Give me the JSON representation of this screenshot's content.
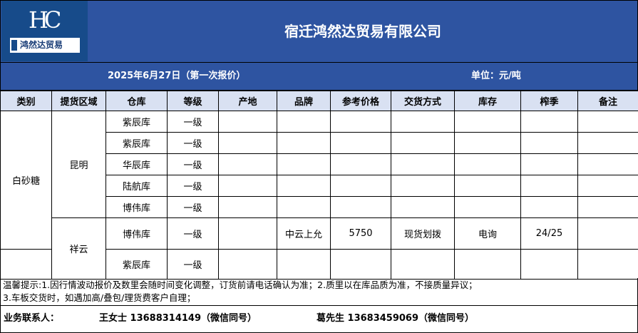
{
  "logo": {
    "mark": "HC",
    "text": "鸿然达贸易"
  },
  "company": "宿迁鸿然达贸易有限公司",
  "date_line": "2025年6月27日（第一次报价）",
  "unit": "单位：元/吨",
  "columns": [
    "类别",
    "提货区域",
    "仓库",
    "等级",
    "产地",
    "品牌",
    "参考价格",
    "交货方式",
    "库存",
    "榨季",
    "备注"
  ],
  "category": "白砂糖",
  "regions": [
    "昆明",
    "祥云"
  ],
  "rows": [
    {
      "warehouse": "紫辰库",
      "grade": "一级",
      "origin": "",
      "brand": "",
      "price": "",
      "delivery": "",
      "stock": "",
      "season": "",
      "note": ""
    },
    {
      "warehouse": "紫辰库",
      "grade": "一级",
      "origin": "",
      "brand": "",
      "price": "",
      "delivery": "",
      "stock": "",
      "season": "",
      "note": ""
    },
    {
      "warehouse": "华辰库",
      "grade": "一级",
      "origin": "",
      "brand": "",
      "price": "",
      "delivery": "",
      "stock": "",
      "season": "",
      "note": ""
    },
    {
      "warehouse": "陆航库",
      "grade": "一级",
      "origin": "",
      "brand": "",
      "price": "",
      "delivery": "",
      "stock": "",
      "season": "",
      "note": ""
    },
    {
      "warehouse": "博伟库",
      "grade": "一级",
      "origin": "",
      "brand": "",
      "price": "",
      "delivery": "",
      "stock": "",
      "season": "",
      "note": ""
    },
    {
      "warehouse": "博伟库",
      "grade": "一级",
      "origin": "",
      "brand": "中云上允",
      "price": "5750",
      "delivery": "现货划拨",
      "stock": "电询",
      "season": "24/25",
      "note": ""
    },
    {
      "warehouse": "紫辰库",
      "grade": "一级",
      "origin": "",
      "brand": "",
      "price": "",
      "delivery": "",
      "stock": "",
      "season": "",
      "note": ""
    }
  ],
  "notes": [
    "温馨提示:1.因行情波动报价及数里会随时间变化调整，订货前请电话确认为准；2.质里以在库品质为准，不接质量异议；",
    "3.车板交货时，如遇加高/叠包/理货费客户自理；"
  ],
  "contact": {
    "label": "业务联系人：",
    "person1": "王女士 13688314149（微信同号）",
    "person2": "葛先生 13683459069（微信同号）"
  },
  "colors": {
    "header_blue": "#2e54a1",
    "column_header": "#d9e1f2"
  }
}
